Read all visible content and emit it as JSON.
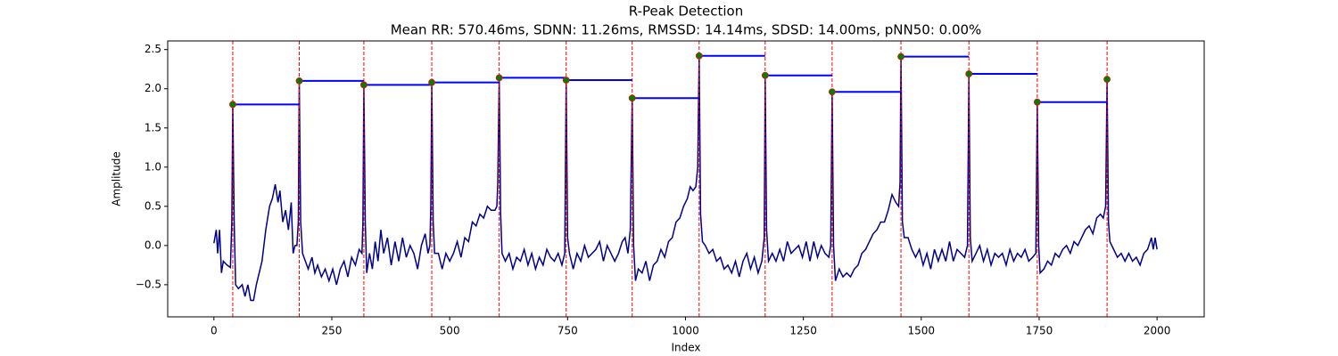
{
  "chart_data": {
    "type": "line",
    "title": "R-Peak Detection",
    "subtitle": "Mean RR: 570.46ms, SDNN: 11.26ms, RMSSD: 14.14ms, SDSD: 14.00ms, pNN50: 0.00%",
    "xlabel": "Index",
    "ylabel": "Amplitude",
    "xlim": [
      -98,
      2100
    ],
    "ylim": [
      -0.91,
      2.61
    ],
    "xticks": [
      0,
      250,
      500,
      750,
      1000,
      1250,
      1500,
      1750,
      2000
    ],
    "yticks": [
      {
        "value": -0.5,
        "label": "−0.5"
      },
      {
        "value": 0,
        "label": "0.0"
      },
      0.5,
      {
        "value": 1,
        "label": "1.0"
      },
      1.5,
      {
        "value": 2,
        "label": "2.0"
      },
      2.5
    ],
    "grid": false,
    "peak_line_color": "#ff0000",
    "interval_color": "#0000ff",
    "series": [
      {
        "color": "#00008b",
        "x": [
          0,
          5,
          8,
          12,
          16,
          20,
          28,
          35,
          38,
          40,
          43,
          46,
          52,
          60,
          66,
          72,
          78,
          84,
          90,
          96,
          102,
          110,
          118,
          124,
          130,
          136,
          140,
          146,
          152,
          158,
          164,
          168,
          172,
          176,
          179,
          181,
          184,
          188,
          194,
          200,
          208,
          214,
          220,
          228,
          236,
          244,
          252,
          260,
          268,
          276,
          284,
          292,
          300,
          308,
          314,
          316,
          318,
          321,
          324,
          330,
          336,
          342,
          348,
          354,
          360,
          368,
          376,
          384,
          392,
          400,
          408,
          416,
          424,
          432,
          440,
          448,
          454,
          458,
          460,
          462,
          465,
          468,
          476,
          484,
          492,
          500,
          508,
          516,
          524,
          532,
          540,
          548,
          556,
          564,
          572,
          580,
          588,
          596,
          600,
          602,
          605,
          608,
          611,
          618,
          626,
          634,
          642,
          650,
          658,
          666,
          674,
          682,
          690,
          698,
          706,
          714,
          722,
          730,
          738,
          744,
          747,
          750,
          754,
          762,
          770,
          778,
          786,
          794,
          802,
          810,
          818,
          826,
          834,
          842,
          850,
          858,
          866,
          872,
          878,
          883,
          887,
          890,
          894,
          900,
          908,
          916,
          924,
          932,
          940,
          948,
          956,
          964,
          972,
          980,
          988,
          996,
          1004,
          1010,
          1016,
          1022,
          1026,
          1029,
          1032,
          1036,
          1042,
          1050,
          1058,
          1066,
          1074,
          1082,
          1090,
          1098,
          1106,
          1114,
          1122,
          1130,
          1138,
          1146,
          1154,
          1162,
          1167,
          1169,
          1172,
          1176,
          1184,
          1192,
          1200,
          1208,
          1216,
          1224,
          1232,
          1240,
          1248,
          1256,
          1264,
          1272,
          1280,
          1288,
          1296,
          1304,
          1308,
          1311,
          1314,
          1318,
          1326,
          1334,
          1342,
          1350,
          1358,
          1366,
          1374,
          1382,
          1390,
          1398,
          1406,
          1414,
          1422,
          1430,
          1438,
          1446,
          1452,
          1455,
          1457,
          1460,
          1464,
          1472,
          1480,
          1488,
          1496,
          1504,
          1512,
          1520,
          1528,
          1536,
          1544,
          1552,
          1560,
          1568,
          1576,
          1584,
          1592,
          1598,
          1601,
          1604,
          1608,
          1616,
          1624,
          1632,
          1640,
          1648,
          1656,
          1664,
          1672,
          1680,
          1688,
          1696,
          1704,
          1712,
          1720,
          1728,
          1736,
          1743,
          1746,
          1749,
          1752,
          1760,
          1768,
          1776,
          1784,
          1792,
          1800,
          1808,
          1816,
          1824,
          1832,
          1840,
          1848,
          1856,
          1864,
          1872,
          1880,
          1886,
          1891,
          1894,
          1897,
          1900,
          1908,
          1916,
          1924,
          1932,
          1940,
          1948,
          1956,
          1964,
          1972,
          1980,
          1988,
          1992,
          1996,
          2000
        ],
        "values": [
          0.03,
          0.2,
          -0.1,
          0.2,
          -0.35,
          -0.2,
          -0.25,
          -0.28,
          0.3,
          1.8,
          0.3,
          -0.5,
          -0.55,
          -0.5,
          -0.65,
          -0.5,
          -0.7,
          -0.7,
          -0.5,
          -0.35,
          -0.2,
          0.2,
          0.5,
          0.6,
          0.78,
          0.55,
          0.7,
          0.3,
          0.45,
          0.2,
          0.55,
          -0.1,
          0,
          0,
          0.3,
          2.1,
          0.3,
          -0.1,
          -0.2,
          -0.3,
          -0.15,
          -0.35,
          -0.25,
          -0.4,
          -0.3,
          -0.45,
          -0.3,
          -0.5,
          -0.3,
          -0.2,
          -0.4,
          -0.15,
          -0.25,
          -0.05,
          -0.1,
          0.3,
          2.05,
          0.3,
          -0.35,
          -0.1,
          -0.3,
          0.05,
          -0.2,
          0.2,
          -0.1,
          0.1,
          -0.25,
          0.05,
          -0.2,
          0.1,
          -0.15,
          0,
          -0.1,
          -0.3,
          0,
          0.15,
          -0.1,
          0,
          0.5,
          2.08,
          0.3,
          -0.1,
          -0.1,
          -0.3,
          -0.1,
          -0.2,
          -0.1,
          0.05,
          -0.15,
          0.1,
          0.05,
          0.3,
          0.25,
          0.4,
          0.35,
          0.5,
          0.45,
          0.45,
          0.5,
          0.8,
          2.14,
          0.4,
          -0.1,
          -0.2,
          -0.1,
          -0.3,
          -0.15,
          -0.2,
          -0.05,
          -0.25,
          -0.1,
          -0.3,
          -0.15,
          -0.25,
          -0.05,
          -0.15,
          -0.2,
          -0.1,
          -0.25,
          -0.1,
          2.11,
          0.1,
          -0.1,
          -0.3,
          -0.1,
          -0.2,
          0,
          -0.15,
          -0.1,
          -0.05,
          0.05,
          -0.2,
          0,
          -0.1,
          -0.2,
          -0.1,
          0.05,
          0.1,
          -0.1,
          0.2,
          1.88,
          0,
          -0.45,
          -0.3,
          -0.35,
          -0.2,
          -0.45,
          -0.25,
          -0.2,
          -0.05,
          -0.15,
          0.05,
          0.1,
          0.3,
          0.35,
          0.5,
          0.6,
          0.75,
          0.7,
          0.75,
          1.0,
          2.42,
          0.4,
          0.05,
          0,
          -0.1,
          -0.05,
          -0.2,
          -0.15,
          -0.3,
          -0.25,
          -0.35,
          -0.2,
          -0.4,
          -0.2,
          -0.1,
          -0.3,
          -0.15,
          -0.35,
          -0.2,
          0.1,
          2.17,
          0.2,
          -0.2,
          -0.1,
          -0.2,
          -0.05,
          -0.2,
          0.05,
          -0.1,
          -0.05,
          0,
          -0.15,
          0.05,
          -0.2,
          0.05,
          -0.15,
          0,
          -0.1,
          -0.15,
          0,
          1.96,
          0,
          -0.45,
          -0.3,
          -0.4,
          -0.35,
          -0.4,
          -0.3,
          -0.25,
          -0.1,
          -0.05,
          0.05,
          0.15,
          0.2,
          0.3,
          0.3,
          0.45,
          0.65,
          0.55,
          0.5,
          0.8,
          2.41,
          0.3,
          0.1,
          0.1,
          -0.05,
          -0.15,
          -0.05,
          -0.25,
          -0.1,
          -0.3,
          -0.05,
          -0.2,
          -0.05,
          -0.2,
          0.05,
          -0.2,
          -0.05,
          -0.1,
          -0.15,
          0,
          2.19,
          0.1,
          -0.2,
          -0.1,
          0,
          -0.2,
          -0.05,
          -0.25,
          -0.1,
          -0.15,
          -0.1,
          -0.25,
          -0.05,
          -0.2,
          -0.1,
          -0.15,
          -0.05,
          -0.2,
          -0.15,
          -0.1,
          1.83,
          0,
          -0.35,
          -0.3,
          -0.2,
          -0.25,
          -0.1,
          -0.15,
          -0.05,
          0,
          -0.1,
          0.05,
          0,
          0.1,
          0.2,
          0.25,
          0.15,
          0.35,
          0.4,
          0.35,
          0.5,
          2.12,
          0.3,
          0.05,
          -0.05,
          -0.15,
          -0.1,
          -0.2,
          -0.1,
          -0.2,
          -0.15,
          -0.25,
          -0.1,
          -0.05,
          0.1,
          -0.05,
          0.1,
          -0.05
        ]
      },
      {
        "color": "#008000",
        "x": [
          40,
          181,
          318,
          462,
          605,
          747,
          887,
          1029,
          1169,
          1311,
          1457,
          1601,
          1746,
          1894
        ],
        "values": [
          1.8,
          2.1,
          2.05,
          2.08,
          2.14,
          2.11,
          1.88,
          2.42,
          2.17,
          1.96,
          2.41,
          2.19,
          1.83,
          2.12
        ]
      }
    ]
  }
}
